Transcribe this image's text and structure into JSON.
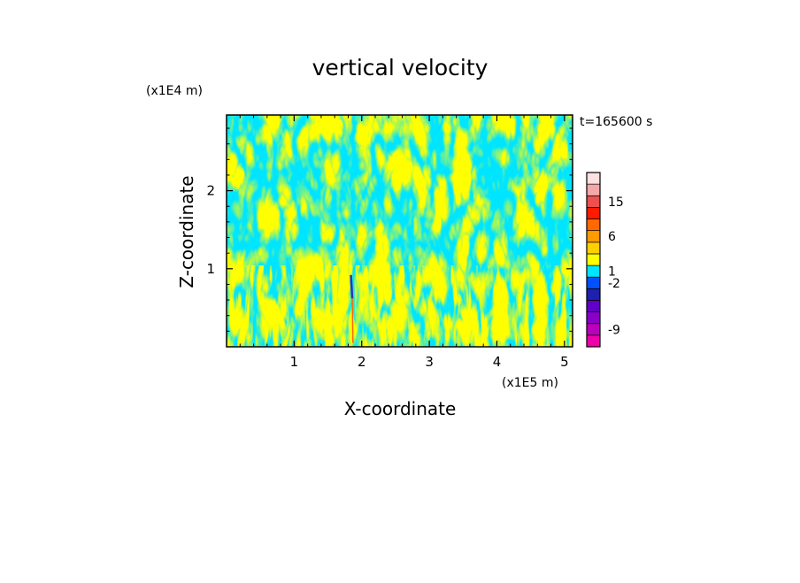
{
  "chart_data": {
    "type": "heatmap",
    "title": "vertical velocity",
    "xlabel": "X-coordinate",
    "ylabel": "Z-coordinate",
    "x_unit": "(x1E5 m)",
    "y_unit": "(x1E4 m)",
    "time_label": "t=165600 s",
    "xlim": [
      0,
      5.12
    ],
    "ylim": [
      0,
      2.97
    ],
    "x_ticks": [
      {
        "value": 1,
        "label": "1"
      },
      {
        "value": 2,
        "label": "2"
      },
      {
        "value": 3,
        "label": "3"
      },
      {
        "value": 4,
        "label": "4"
      },
      {
        "value": 5,
        "label": "5"
      }
    ],
    "y_ticks": [
      {
        "value": 1,
        "label": "1"
      },
      {
        "value": 2,
        "label": "2"
      }
    ],
    "field_colors": {
      "positive": "#ffff00",
      "negative": "#00e5ff",
      "strong_positive": "#ff6a00",
      "strong_negative": "#3030c0"
    },
    "colorbar": {
      "levels": [
        {
          "color": "#ee00aa"
        },
        {
          "color": "#bb00bb"
        },
        {
          "color": "#8a00c8"
        },
        {
          "color": "#6000c8"
        },
        {
          "color": "#2020b0"
        },
        {
          "color": "#0050ff"
        },
        {
          "color": "#00e5ff"
        },
        {
          "color": "#ffff00"
        },
        {
          "color": "#ffd000"
        },
        {
          "color": "#ff9a00"
        },
        {
          "color": "#ff6a00"
        },
        {
          "color": "#ff1a00"
        },
        {
          "color": "#ee5050"
        },
        {
          "color": "#f4a8a8"
        },
        {
          "color": "#fde0e0"
        }
      ],
      "labels": [
        {
          "position": 1.5,
          "label": "-9"
        },
        {
          "position": 5.5,
          "label": "-2"
        },
        {
          "position": 6.5,
          "label": "1"
        },
        {
          "position": 9.5,
          "label": "6"
        },
        {
          "position": 12.5,
          "label": "15"
        }
      ]
    }
  }
}
